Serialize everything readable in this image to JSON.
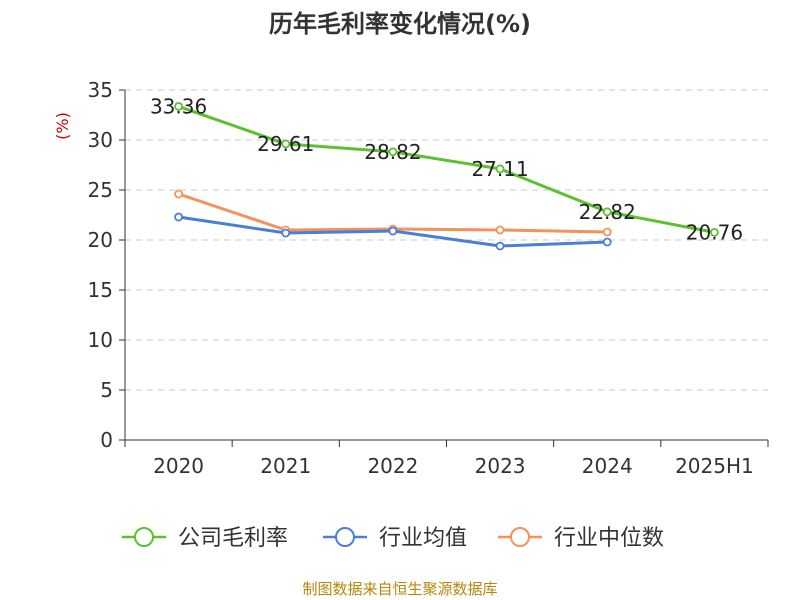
{
  "chart_data": {
    "type": "line",
    "title": "历年毛利率变化情况(%)",
    "ylabel": "(%)",
    "xlabel": "",
    "categories": [
      "2020",
      "2021",
      "2022",
      "2023",
      "2024",
      "2025H1"
    ],
    "ylim": [
      0,
      35
    ],
    "yticks": [
      0,
      5,
      10,
      15,
      20,
      25,
      30,
      35
    ],
    "grid": true,
    "legend_position": "bottom",
    "series": [
      {
        "name": "公司毛利率",
        "color": "#5cc12e",
        "values": [
          33.36,
          29.61,
          28.82,
          27.11,
          22.82,
          20.76
        ],
        "labels": [
          "33.36",
          "29.61",
          "28.82",
          "27.11",
          "22.82",
          "20.76"
        ]
      },
      {
        "name": "行业均值",
        "color": "#4a7fd8",
        "values": [
          22.3,
          20.7,
          20.9,
          19.4,
          19.8,
          null
        ]
      },
      {
        "name": "行业中位数",
        "color": "#f5915a",
        "values": [
          24.6,
          21.0,
          21.1,
          21.0,
          20.8,
          null
        ]
      }
    ],
    "source": "制图数据来自恒生聚源数据库"
  }
}
